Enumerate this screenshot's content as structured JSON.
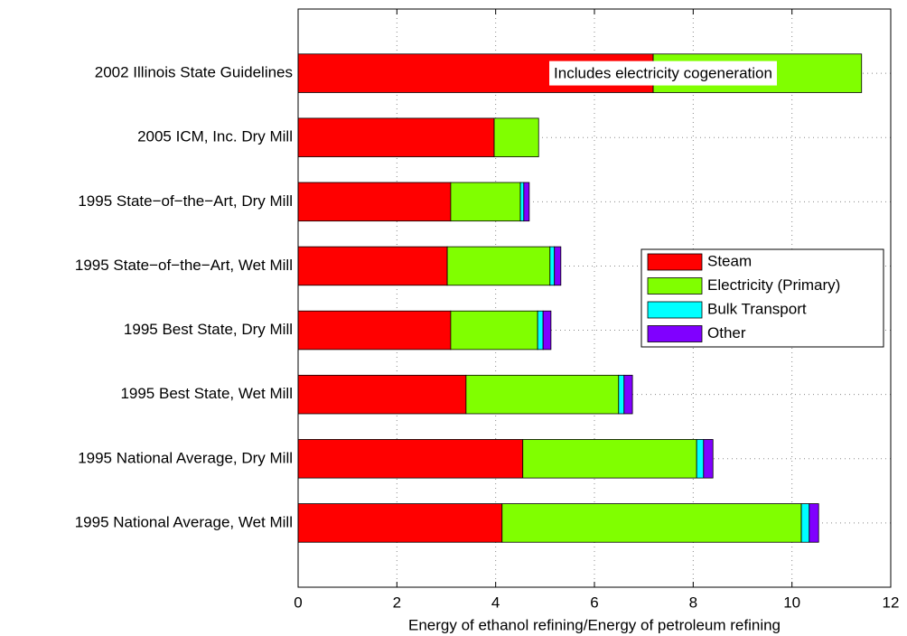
{
  "chart_data": {
    "type": "barh_stacked",
    "xlabel": "Energy of ethanol refining/Energy of petroleum refining",
    "annotation": "Includes electricity cogeneration",
    "categories": [
      "2002 Illinois State Guidelines",
      "2005 ICM, Inc. Dry Mill",
      "1995 State−of−the−Art, Dry Mill",
      "1995 State−of−the−Art, Wet Mill",
      "1995 Best State, Dry Mill",
      "1995 Best State, Wet Mill",
      "1995 National Average, Dry Mill",
      "1995 National Average, Wet Mill"
    ],
    "series": [
      {
        "name": "Steam",
        "color": "#ff0000",
        "values": [
          7.19,
          3.97,
          3.09,
          3.02,
          3.09,
          3.4,
          4.55,
          4.13
        ]
      },
      {
        "name": "Electricity (Primary)",
        "color": "#80ff00",
        "values": [
          4.22,
          0.9,
          1.41,
          2.08,
          1.76,
          3.09,
          3.52,
          6.06
        ]
      },
      {
        "name": "Bulk Transport",
        "color": "#00ffff",
        "values": [
          0,
          0,
          0.07,
          0.09,
          0.11,
          0.11,
          0.14,
          0.16
        ]
      },
      {
        "name": "Other",
        "color": "#8000ff",
        "values": [
          0,
          0,
          0.11,
          0.13,
          0.16,
          0.17,
          0.19,
          0.19
        ]
      }
    ],
    "xlim": [
      0,
      12
    ],
    "xticks": [
      0,
      2,
      4,
      6,
      8,
      10,
      12
    ],
    "grid": true,
    "legend": "right"
  }
}
